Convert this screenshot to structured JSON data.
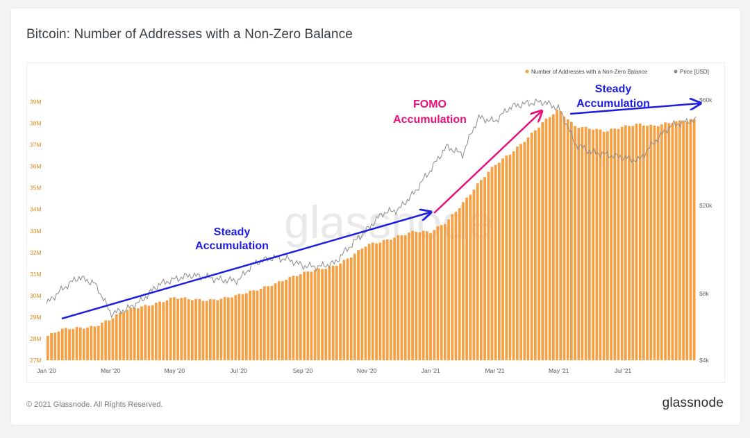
{
  "page": {
    "title": "Bitcoin: Number of Addresses with a Non-Zero Balance",
    "copyright": "© 2021 Glassnode. All Rights Reserved.",
    "logo": "glassnode",
    "watermark": "glassnode"
  },
  "colors": {
    "addresses": "#f7a043",
    "price": "#8a8a8a",
    "steady_arrow": "#1e1ee0",
    "fomo_arrow": "#e8107a",
    "left_tick": "#d98a1c",
    "right_tick": "#666666"
  },
  "chart_data": {
    "type": "bar",
    "legend": {
      "placement": "top-right",
      "entries": [
        {
          "label": "Number of Addresses with a Non-Zero Balance",
          "color": "#f7a043"
        },
        {
          "label": "Price [USD]",
          "color": "#8a8a8a"
        }
      ]
    },
    "x_ticks": [
      "Jan '20",
      "Mar '20",
      "May '20",
      "Jul '20",
      "Sep '20",
      "Nov '20",
      "Jan '21",
      "Mar '21",
      "May '21",
      "Jul '21"
    ],
    "y_left": {
      "ylim": [
        27,
        39.5
      ],
      "unit": "M",
      "ticks": [
        "27M",
        "28M",
        "29M",
        "30M",
        "31M",
        "32M",
        "33M",
        "34M",
        "35M",
        "36M",
        "37M",
        "38M",
        "39M"
      ]
    },
    "y_right": {
      "scale": "log",
      "ticks": [
        "$4k",
        "$8k",
        "$20k",
        "$60k"
      ],
      "tick_values": [
        4000,
        8000,
        20000,
        60000
      ]
    },
    "x_range_months": [
      0,
      20.3
    ],
    "series": [
      {
        "name": "Number of Addresses with a Non-Zero Balance",
        "kind": "bar",
        "points": [
          [
            0,
            28.1
          ],
          [
            0.5,
            28.4
          ],
          [
            1,
            28.5
          ],
          [
            1.5,
            28.6
          ],
          [
            2,
            28.9
          ],
          [
            2.5,
            29.3
          ],
          [
            3,
            29.5
          ],
          [
            3.5,
            29.7
          ],
          [
            4,
            29.9
          ],
          [
            4.5,
            29.8
          ],
          [
            5,
            29.8
          ],
          [
            5.5,
            29.9
          ],
          [
            6,
            30.0
          ],
          [
            6.5,
            30.2
          ],
          [
            7,
            30.5
          ],
          [
            7.5,
            30.8
          ],
          [
            8,
            31.0
          ],
          [
            8.5,
            31.2
          ],
          [
            9,
            31.4
          ],
          [
            9.5,
            31.8
          ],
          [
            10,
            32.3
          ],
          [
            10.5,
            32.5
          ],
          [
            11,
            32.8
          ],
          [
            11.5,
            33.0
          ],
          [
            12,
            32.9
          ],
          [
            12.5,
            33.4
          ],
          [
            13,
            34.3
          ],
          [
            13.5,
            35.2
          ],
          [
            14,
            36.0
          ],
          [
            14.5,
            36.6
          ],
          [
            15,
            37.3
          ],
          [
            15.5,
            38.0
          ],
          [
            16,
            38.6
          ],
          [
            16.5,
            37.9
          ],
          [
            17,
            37.8
          ],
          [
            17.5,
            37.6
          ],
          [
            18,
            37.8
          ],
          [
            18.5,
            38.0
          ],
          [
            19,
            37.9
          ],
          [
            19.5,
            38.0
          ],
          [
            20,
            38.1
          ],
          [
            20.3,
            38.2
          ]
        ]
      },
      {
        "name": "Price [USD]",
        "kind": "line",
        "points": [
          [
            0,
            7200
          ],
          [
            0.5,
            8400
          ],
          [
            1,
            9500
          ],
          [
            1.5,
            8900
          ],
          [
            2,
            6500
          ],
          [
            2.5,
            6800
          ],
          [
            3,
            7500
          ],
          [
            3.5,
            8800
          ],
          [
            4,
            9300
          ],
          [
            4.5,
            9700
          ],
          [
            5,
            9500
          ],
          [
            5.5,
            9200
          ],
          [
            6,
            9200
          ],
          [
            6.5,
            11000
          ],
          [
            7,
            11600
          ],
          [
            7.5,
            11500
          ],
          [
            8,
            10700
          ],
          [
            8.5,
            10600
          ],
          [
            9,
            11000
          ],
          [
            9.5,
            13200
          ],
          [
            10,
            15500
          ],
          [
            10.5,
            18500
          ],
          [
            11,
            19200
          ],
          [
            11.5,
            23000
          ],
          [
            12,
            29000
          ],
          [
            12.5,
            37000
          ],
          [
            13,
            34000
          ],
          [
            13.5,
            50000
          ],
          [
            14,
            48000
          ],
          [
            14.5,
            56000
          ],
          [
            15,
            58000
          ],
          [
            15.5,
            59000
          ],
          [
            16,
            55000
          ],
          [
            16.5,
            38000
          ],
          [
            17,
            35000
          ],
          [
            17.5,
            34000
          ],
          [
            18,
            33000
          ],
          [
            18.5,
            32000
          ],
          [
            19,
            39000
          ],
          [
            19.5,
            46000
          ],
          [
            20,
            48000
          ],
          [
            20.3,
            49000
          ]
        ]
      }
    ],
    "annotations": [
      {
        "text": [
          "Steady",
          "Accumulation"
        ],
        "color": "#1e1ee0"
      },
      {
        "text": [
          "FOMO",
          "Accumulation"
        ],
        "color": "#e8107a"
      },
      {
        "text": [
          "Steady",
          "Accumulation"
        ],
        "color": "#1e1ee0"
      }
    ]
  }
}
